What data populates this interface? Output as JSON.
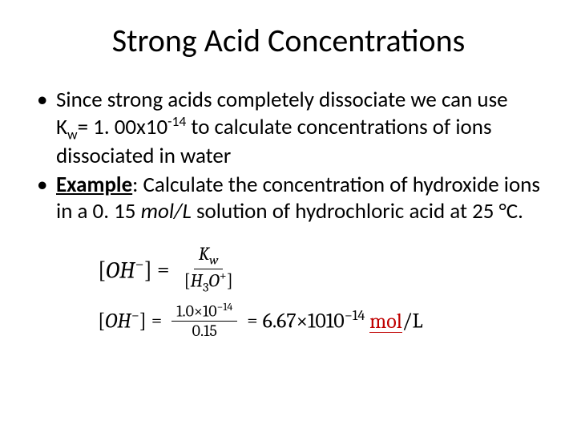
{
  "title": "Strong Acid Concentrations",
  "bullet1": {
    "pre": "Since strong acids completely dissociate we can use K",
    "sub": "w",
    "mid1": "= 1. 00x10",
    "sup": "-14",
    "post": " to calculate concentrations of ions dissociated in water"
  },
  "bullet2": {
    "lead": "Example",
    "rest1": ": Calculate the concentration of hydroxide ions in a 0. 15 ",
    "unit": "mol/L",
    "rest2": " solution of hydrochloric acid at 25 °C."
  },
  "eq1": {
    "lhs_open": "[",
    "lhs_inner1": "OH",
    "lhs_sup": "−",
    "lhs_close": "]",
    "equals": " = ",
    "num_pre": "K",
    "num_sub": "w",
    "den_open": "[",
    "den_inner1": "H",
    "den_sub": "3",
    "den_inner2": "O",
    "den_sup": "+",
    "den_close": "]"
  },
  "eq2": {
    "lhs_open": "[",
    "lhs_inner1": "OH",
    "lhs_sup": "−",
    "lhs_close": "]",
    "equals": " = ",
    "num_pre": "1.0×10",
    "num_sup": "−14",
    "den": "0.15",
    "eq2": " = ",
    "res_pre": "6.67×1010",
    "res_sup": "−14",
    "space": " ",
    "unit1": "mol",
    "slash": "/L"
  }
}
